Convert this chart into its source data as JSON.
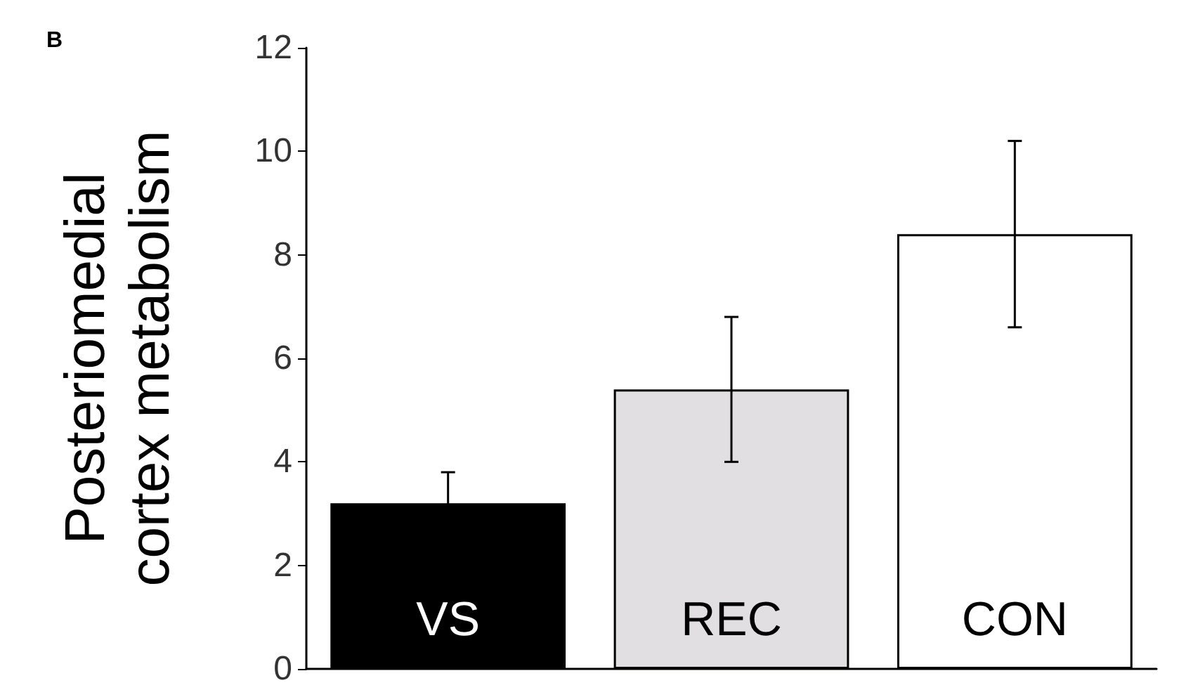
{
  "chart_data": {
    "type": "bar",
    "title": "B",
    "ylabel": "Posteriomedial\ncortex metabolism",
    "categories": [
      "VS",
      "REC",
      "CON"
    ],
    "values": [
      3.2,
      5.4,
      8.4
    ],
    "colors": [
      "#000000",
      "#e2dfe3",
      "#ffffff"
    ],
    "errors": [
      0.6,
      1.4,
      1.8
    ],
    "ylim": [
      0,
      12
    ],
    "yticks": [
      0,
      2,
      4,
      6,
      8,
      10,
      12
    ],
    "grid": false
  }
}
